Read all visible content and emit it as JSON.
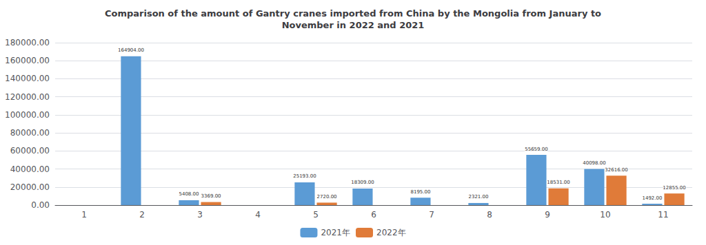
{
  "chart_data": {
    "type": "bar",
    "title": "Comparison of the amount of Gantry cranes imported from China by the Mongolia from January to\nNovember in 2022 and 2021",
    "categories": [
      "1",
      "2",
      "3",
      "4",
      "5",
      "6",
      "7",
      "8",
      "9",
      "10",
      "11"
    ],
    "series": [
      {
        "name": "2021年",
        "color": "#5b9bd5",
        "values": [
          0,
          164904.0,
          5408.0,
          0,
          25193.0,
          18309.0,
          8195.0,
          2321.0,
          55659.0,
          40098.0,
          1492.0
        ],
        "value_labels": [
          null,
          "164904.00",
          "5408.00",
          null,
          "25193.00",
          "18309.00",
          "8195.00",
          "2321.00",
          "55659.00",
          "40098.00",
          "1492.00"
        ]
      },
      {
        "name": "2022年",
        "color": "#e07b39",
        "values": [
          0,
          0,
          3369.0,
          0,
          2720.0,
          0,
          0,
          0,
          18531.0,
          32616.0,
          12855.0
        ],
        "value_labels": [
          null,
          null,
          "3369.00",
          null,
          "2720.00",
          null,
          null,
          null,
          "18531.00",
          "32616.00",
          "12855.00"
        ]
      }
    ],
    "ylim": [
      0,
      180000
    ],
    "yticks": [
      {
        "value": 0,
        "label": "0.00"
      },
      {
        "value": 20000,
        "label": "20000.00"
      },
      {
        "value": 40000,
        "label": "40000.00"
      },
      {
        "value": 60000,
        "label": "60000.00"
      },
      {
        "value": 80000,
        "label": "80000.00"
      },
      {
        "value": 100000,
        "label": "100000.00"
      },
      {
        "value": 120000,
        "label": "120000.00"
      },
      {
        "value": 140000,
        "label": "140000.00"
      },
      {
        "value": 160000,
        "label": "160000.00"
      },
      {
        "value": 180000,
        "label": "180000.00"
      }
    ],
    "grid": true,
    "legend": "bottom",
    "data_labels": true
  }
}
